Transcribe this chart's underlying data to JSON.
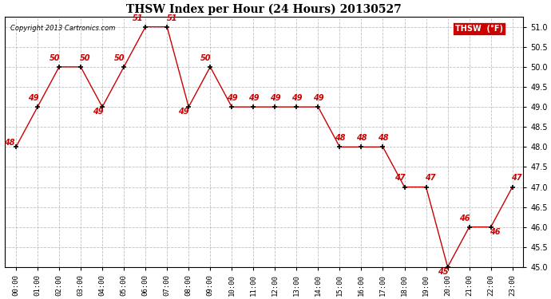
{
  "title": "THSW Index per Hour (24 Hours) 20130527",
  "copyright": "Copyright 2013 Cartronics.com",
  "hours": [
    "00:00",
    "01:00",
    "02:00",
    "03:00",
    "04:00",
    "05:00",
    "06:00",
    "07:00",
    "08:00",
    "09:00",
    "10:00",
    "11:00",
    "12:00",
    "13:00",
    "14:00",
    "15:00",
    "16:00",
    "17:00",
    "18:00",
    "19:00",
    "20:00",
    "21:00",
    "22:00",
    "23:00"
  ],
  "hours_x": [
    0,
    1,
    2,
    3,
    4,
    5,
    6,
    7,
    8,
    9,
    10,
    11,
    12,
    13,
    14,
    15,
    16,
    17,
    18,
    19,
    20,
    21,
    22,
    23
  ],
  "data_values": [
    48,
    49,
    50,
    50,
    49,
    50,
    51,
    51,
    49,
    50,
    49,
    49,
    49,
    49,
    49,
    48,
    48,
    48,
    47,
    47,
    45,
    46,
    46,
    47
  ],
  "line_color": "#cc0000",
  "marker_color": "#000000",
  "label_color": "#cc0000",
  "background_color": "#ffffff",
  "grid_color": "#b0b0b0",
  "ylim_min": 45.0,
  "ylim_max": 51.25,
  "legend_bg": "#cc0000",
  "legend_text": "THSW  (°F)"
}
